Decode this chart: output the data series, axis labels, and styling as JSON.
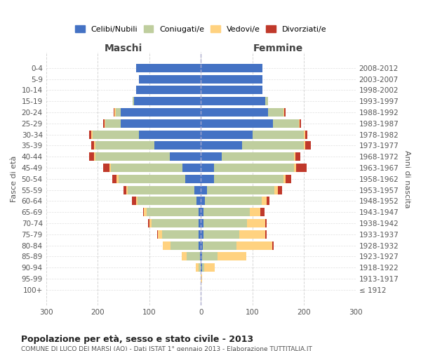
{
  "age_groups": [
    "100+",
    "95-99",
    "90-94",
    "85-89",
    "80-84",
    "75-79",
    "70-74",
    "65-69",
    "60-64",
    "55-59",
    "50-54",
    "45-49",
    "40-44",
    "35-39",
    "30-34",
    "25-29",
    "20-24",
    "15-19",
    "10-14",
    "5-9",
    "0-4"
  ],
  "birth_years": [
    "≤ 1912",
    "1913-1917",
    "1918-1922",
    "1923-1927",
    "1928-1932",
    "1933-1937",
    "1938-1942",
    "1943-1947",
    "1948-1952",
    "1953-1957",
    "1958-1962",
    "1963-1967",
    "1968-1972",
    "1973-1977",
    "1978-1982",
    "1983-1987",
    "1988-1992",
    "1993-1997",
    "1998-2002",
    "2003-2007",
    "2008-2012"
  ],
  "male": {
    "celibi": [
      0,
      0,
      0,
      2,
      4,
      5,
      5,
      5,
      8,
      12,
      30,
      35,
      60,
      90,
      120,
      155,
      155,
      130,
      125,
      120,
      125
    ],
    "coniugati": [
      0,
      0,
      5,
      25,
      55,
      70,
      90,
      100,
      115,
      130,
      130,
      140,
      145,
      115,
      90,
      30,
      10,
      2,
      0,
      0,
      0
    ],
    "vedovi": [
      0,
      0,
      5,
      10,
      15,
      8,
      5,
      5,
      3,
      3,
      3,
      2,
      2,
      2,
      2,
      2,
      2,
      0,
      0,
      0,
      0
    ],
    "divorziati": [
      0,
      0,
      0,
      0,
      0,
      2,
      2,
      2,
      8,
      5,
      8,
      12,
      10,
      5,
      5,
      2,
      2,
      0,
      0,
      0,
      0
    ]
  },
  "female": {
    "nubili": [
      0,
      0,
      2,
      3,
      4,
      5,
      5,
      5,
      8,
      12,
      25,
      25,
      40,
      80,
      100,
      140,
      130,
      125,
      120,
      120,
      120
    ],
    "coniugate": [
      0,
      0,
      5,
      30,
      65,
      70,
      85,
      90,
      110,
      130,
      135,
      155,
      140,
      120,
      100,
      50,
      30,
      5,
      0,
      0,
      0
    ],
    "vedove": [
      0,
      2,
      20,
      55,
      70,
      50,
      35,
      20,
      10,
      8,
      5,
      5,
      3,
      3,
      2,
      2,
      2,
      0,
      0,
      0,
      0
    ],
    "divorziate": [
      0,
      0,
      0,
      0,
      2,
      2,
      2,
      8,
      5,
      8,
      10,
      20,
      10,
      10,
      5,
      2,
      2,
      0,
      0,
      0,
      0
    ]
  },
  "colors": {
    "celibi_nubili": "#4472C4",
    "coniugati": "#BFCE9E",
    "vedovi": "#FFD280",
    "divorziati": "#C0392B"
  },
  "title": "Popolazione per età, sesso e stato civile - 2013",
  "subtitle": "COMUNE DI LUCO DEI MARSI (AQ) - Dati ISTAT 1° gennaio 2013 - Elaborazione TUTTITALIA.IT",
  "xlabel_left": "Maschi",
  "xlabel_right": "Femmine",
  "ylabel_left": "Fasce di età",
  "ylabel_right": "Anni di nascita",
  "xlim": 300,
  "background_color": "#ffffff",
  "grid_color": "#cccccc"
}
